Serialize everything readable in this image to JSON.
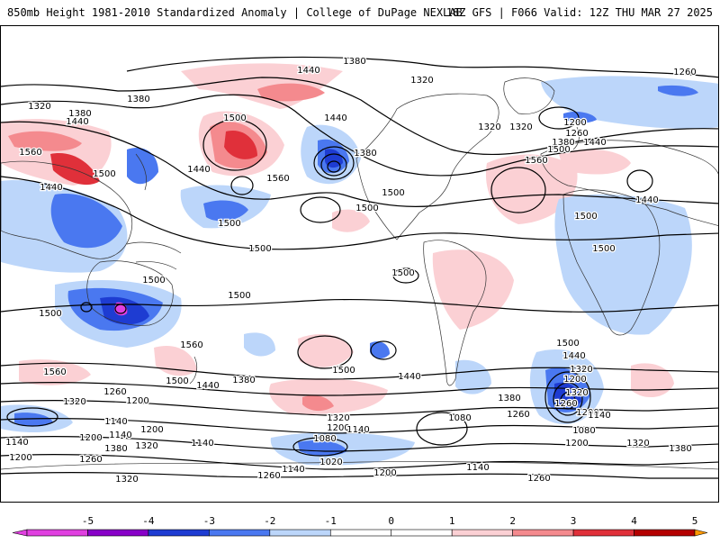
{
  "header": {
    "title": "850mb Height 1981-2010 Standardized Anomaly | College of DuPage NEXLAB",
    "run_info": "18Z GFS | F066 Valid: 12Z THU MAR 27 2025"
  },
  "colors": {
    "neg5": "#e040e0",
    "neg4": "#8800c8",
    "neg3": "#1e3cd2",
    "neg2": "#4a78f0",
    "neg1": "#bcd6fa",
    "zero": "#ffffff",
    "pos1": "#fbd0d4",
    "pos2": "#f48a8e",
    "pos3": "#e0303a",
    "pos4": "#b40000",
    "pos5": "#ff9800"
  },
  "legend": {
    "ticks": [
      "-5",
      "-4",
      "-3",
      "-2",
      "-1",
      "0",
      "1",
      "2",
      "3",
      "4",
      "5"
    ]
  },
  "contour_labels": [
    {
      "id": "c1",
      "text": "1380"
    },
    {
      "id": "c2",
      "text": "1440"
    },
    {
      "id": "c3",
      "text": "1320"
    },
    {
      "id": "c4",
      "text": "1260"
    },
    {
      "id": "c5",
      "text": "1380"
    },
    {
      "id": "c6",
      "text": "1320"
    },
    {
      "id": "c7",
      "text": "1380"
    },
    {
      "id": "c8",
      "text": "1440"
    },
    {
      "id": "c9",
      "text": "1500"
    },
    {
      "id": "c10",
      "text": "1560"
    },
    {
      "id": "c11",
      "text": "1500"
    },
    {
      "id": "c12",
      "text": "1440"
    },
    {
      "id": "c13",
      "text": "1440"
    },
    {
      "id": "c14",
      "text": "1500"
    },
    {
      "id": "c15",
      "text": "1560"
    },
    {
      "id": "c16",
      "text": "1500"
    },
    {
      "id": "c17",
      "text": "1380"
    },
    {
      "id": "c18",
      "text": "1440"
    },
    {
      "id": "c19",
      "text": "1500"
    },
    {
      "id": "c20",
      "text": "1320"
    },
    {
      "id": "c21",
      "text": "1320"
    },
    {
      "id": "c22",
      "text": "1200"
    },
    {
      "id": "c23",
      "text": "1260"
    },
    {
      "id": "c24",
      "text": "1380"
    },
    {
      "id": "c25",
      "text": "1440"
    },
    {
      "id": "c26",
      "text": "1500"
    },
    {
      "id": "c27",
      "text": "1560"
    },
    {
      "id": "c28",
      "text": "1500"
    },
    {
      "id": "c29",
      "text": "1440"
    },
    {
      "id": "c30",
      "text": "1500"
    },
    {
      "id": "c31",
      "text": "1500"
    },
    {
      "id": "c32",
      "text": "1500"
    },
    {
      "id": "c33",
      "text": "1500"
    },
    {
      "id": "c34",
      "text": "1500"
    },
    {
      "id": "c35",
      "text": "1500"
    },
    {
      "id": "c36",
      "text": "1560"
    },
    {
      "id": "c37",
      "text": "1560"
    },
    {
      "id": "c38",
      "text": "1500"
    },
    {
      "id": "c39",
      "text": "1440"
    },
    {
      "id": "c40",
      "text": "1380"
    },
    {
      "id": "c41",
      "text": "1500"
    },
    {
      "id": "c42",
      "text": "1440"
    },
    {
      "id": "c43",
      "text": "1380"
    },
    {
      "id": "c44",
      "text": "1500"
    },
    {
      "id": "c45",
      "text": "1440"
    },
    {
      "id": "c46",
      "text": "1320"
    },
    {
      "id": "c47",
      "text": "1200"
    },
    {
      "id": "c48",
      "text": "1320"
    },
    {
      "id": "c49",
      "text": "1260"
    },
    {
      "id": "c50",
      "text": "1200"
    },
    {
      "id": "c51",
      "text": "1260"
    },
    {
      "id": "c52",
      "text": "1320"
    },
    {
      "id": "c53",
      "text": "1260"
    },
    {
      "id": "c54",
      "text": "1320"
    },
    {
      "id": "c55",
      "text": "1200"
    },
    {
      "id": "c56",
      "text": "1140"
    },
    {
      "id": "c57",
      "text": "1080"
    },
    {
      "id": "c58",
      "text": "1140"
    },
    {
      "id": "c59",
      "text": "1200"
    },
    {
      "id": "c60",
      "text": "1080"
    },
    {
      "id": "c61",
      "text": "1200"
    },
    {
      "id": "c62",
      "text": "1140"
    },
    {
      "id": "c63",
      "text": "1080"
    },
    {
      "id": "c64",
      "text": "1140"
    },
    {
      "id": "c65",
      "text": "1200"
    },
    {
      "id": "c66",
      "text": "1320"
    },
    {
      "id": "c67",
      "text": "1380"
    },
    {
      "id": "c68",
      "text": "1140"
    },
    {
      "id": "c69",
      "text": "1200"
    },
    {
      "id": "c70",
      "text": "1380"
    },
    {
      "id": "c71",
      "text": "1320"
    },
    {
      "id": "c72",
      "text": "1020"
    },
    {
      "id": "c73",
      "text": "1140"
    },
    {
      "id": "c74",
      "text": "1260"
    },
    {
      "id": "c75",
      "text": "1200"
    },
    {
      "id": "c76",
      "text": "1140"
    },
    {
      "id": "c77",
      "text": "1260"
    },
    {
      "id": "c78",
      "text": "1320"
    },
    {
      "id": "c79",
      "text": "1140"
    },
    {
      "id": "c80",
      "text": "1260"
    },
    {
      "id": "c81",
      "text": "1200"
    }
  ]
}
